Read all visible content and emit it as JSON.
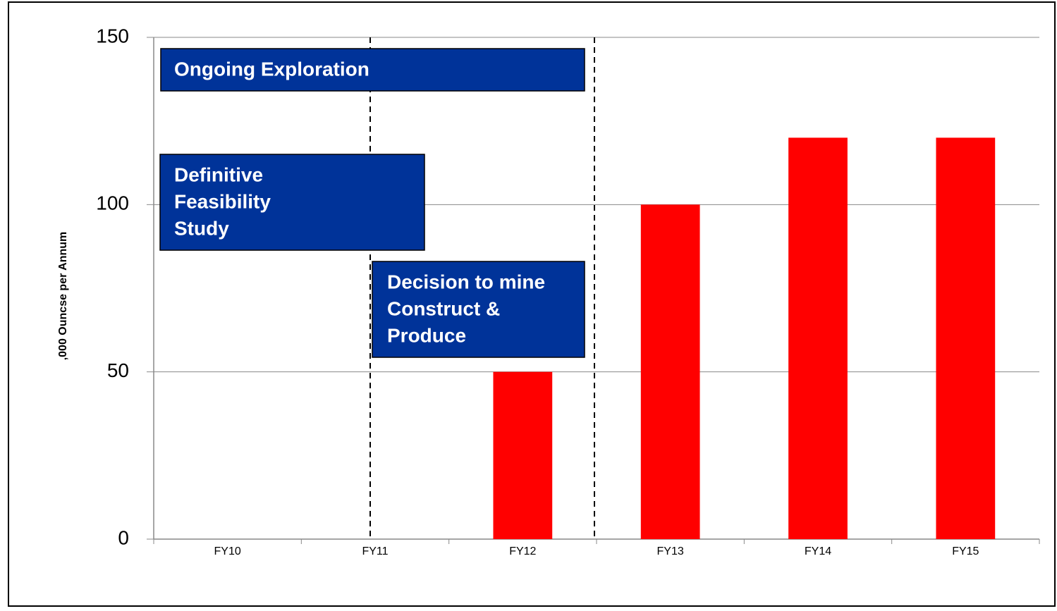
{
  "chart_data": {
    "type": "bar",
    "y_axis_label": ",000 Ouncse per Annum",
    "categories": [
      "FY10",
      "FY11",
      "FY12",
      "FY13",
      "FY14",
      "FY15"
    ],
    "values": [
      0,
      0,
      50,
      100,
      120,
      120
    ],
    "color": "#ff0000",
    "ylim": [
      0,
      150
    ],
    "yticks": [
      0,
      50,
      100,
      150
    ],
    "grid": true,
    "annotations": [
      {
        "lines": [
          "Ongoing Exploration"
        ]
      },
      {
        "lines": [
          "Definitive",
          "Feasibility",
          "Study"
        ]
      },
      {
        "lines": [
          "Decision to mine",
          "Construct &",
          "Produce"
        ]
      }
    ]
  }
}
